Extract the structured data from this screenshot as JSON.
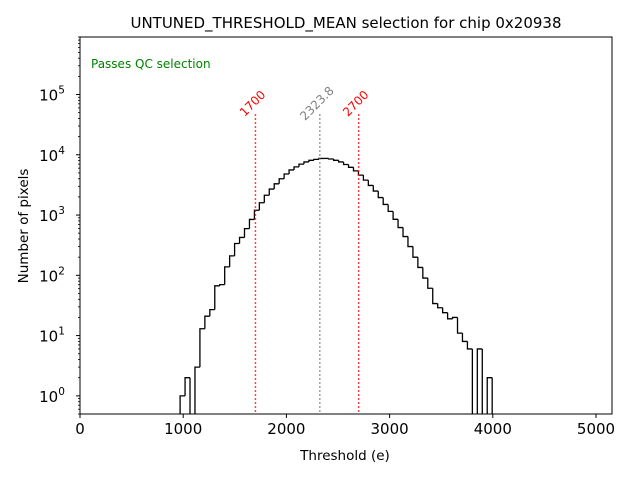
{
  "chart_data": {
    "type": "bar",
    "subtype": "step-histogram",
    "title": "UNTUNED_THRESHOLD_MEAN selection for chip 0x20938",
    "xlabel": "Threshold (e)",
    "ylabel": "Number of pixels",
    "xlim": [
      0,
      5155
    ],
    "ylim": [
      0.5,
      900000
    ],
    "yscale": "log",
    "xticks": [
      0,
      1000,
      2000,
      3000,
      4000,
      5000
    ],
    "xtick_labels": [
      "0",
      "1000",
      "2000",
      "3000",
      "4000",
      "5000"
    ],
    "yticks": [
      1,
      10,
      100,
      1000,
      10000,
      100000
    ],
    "ytick_labels": [
      {
        "base": "10",
        "exp": "0"
      },
      {
        "base": "10",
        "exp": "1"
      },
      {
        "base": "10",
        "exp": "2"
      },
      {
        "base": "10",
        "exp": "3"
      },
      {
        "base": "10",
        "exp": "4"
      },
      {
        "base": "10",
        "exp": "5"
      }
    ],
    "grid": false,
    "bin_start": 970,
    "bin_width": 48,
    "counts": [
      1,
      2,
      0,
      3,
      13,
      21,
      27,
      67,
      70,
      138,
      210,
      337,
      425,
      595,
      845,
      1200,
      1600,
      2130,
      2700,
      3300,
      4000,
      4800,
      5600,
      6300,
      7000,
      7600,
      8100,
      8400,
      8700,
      8700,
      8500,
      8100,
      7600,
      6900,
      6200,
      5400,
      4600,
      3800,
      3100,
      2500,
      1950,
      1500,
      1150,
      850,
      620,
      440,
      300,
      200,
      135,
      90,
      61,
      34,
      29,
      24,
      19,
      20,
      11,
      8,
      6,
      0,
      6,
      0,
      2
    ],
    "line_color": "#000000",
    "vlines": [
      {
        "x": 1700,
        "label": "1700",
        "color": "#ff0000",
        "style": "dotted",
        "top": 47000
      },
      {
        "x": 2323.8,
        "label": "2323.8",
        "color": "#808080",
        "style": "dotted",
        "top": 47000
      },
      {
        "x": 2700,
        "label": "2700",
        "color": "#ff0000",
        "style": "dotted",
        "top": 47000
      }
    ],
    "annotations": [
      {
        "text": "Passes QC selection",
        "color": "#008000",
        "position": "top-left"
      }
    ]
  }
}
